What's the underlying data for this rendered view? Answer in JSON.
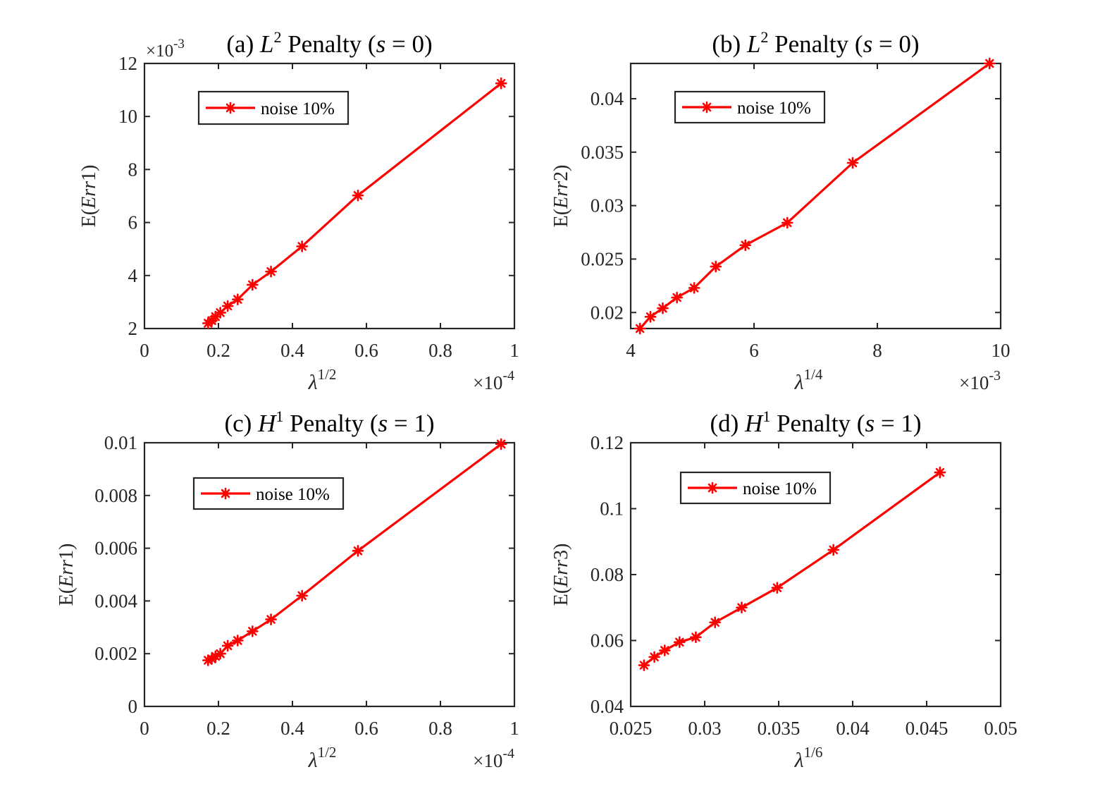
{
  "chart_data": [
    {
      "type": "line",
      "panel": "(a)",
      "title_prefix": "(a) ",
      "title_italic": "L",
      "title_sup": "2",
      "title_mid": " Penalty (",
      "title_var": "s",
      "title_end": " = 0)",
      "xlabel_base": "λ",
      "xlabel_sup": "1/2",
      "ylabel_prefix": "E(",
      "ylabel_italic": "Err",
      "ylabel_suffix": "1)",
      "xlim": [
        0,
        1
      ],
      "ylim": [
        2,
        12
      ],
      "xticks": [
        0,
        0.2,
        0.4,
        0.6,
        0.8,
        1
      ],
      "xtick_labels": [
        "0",
        "0.2",
        "0.4",
        "0.6",
        "0.8",
        "1"
      ],
      "yticks": [
        2,
        4,
        6,
        8,
        10,
        12
      ],
      "ytick_labels": [
        "2",
        "4",
        "6",
        "8",
        "10",
        "12"
      ],
      "x_multiplier_base": "×10",
      "x_multiplier_exp": "-4",
      "y_multiplier_base": "×10",
      "y_multiplier_exp": "-3",
      "legend": "noise 10%",
      "legend_pos": "top-left",
      "color": "#ff0000",
      "x": [
        0.172,
        0.182,
        0.192,
        0.205,
        0.225,
        0.252,
        0.292,
        0.342,
        0.426,
        0.577,
        0.964
      ],
      "y": [
        2.2,
        2.3,
        2.45,
        2.6,
        2.85,
        3.1,
        3.65,
        4.15,
        5.1,
        7.02,
        11.25
      ]
    },
    {
      "type": "line",
      "panel": "(b)",
      "title_prefix": "(b) ",
      "title_italic": "L",
      "title_sup": "2",
      "title_mid": " Penalty (",
      "title_var": "s",
      "title_end": " = 0)",
      "xlabel_base": "λ",
      "xlabel_sup": "1/4",
      "ylabel_prefix": "E(",
      "ylabel_italic": "Err",
      "ylabel_suffix": "2)",
      "xlim": [
        4,
        10
      ],
      "ylim": [
        0.0185,
        0.0433
      ],
      "xticks": [
        4,
        6,
        8,
        10
      ],
      "xtick_labels": [
        "4",
        "6",
        "8",
        "10"
      ],
      "yticks": [
        0.02,
        0.025,
        0.03,
        0.035,
        0.04
      ],
      "ytick_labels": [
        "0.02",
        "0.025",
        "0.03",
        "0.035",
        "0.04"
      ],
      "x_multiplier_base": "×10",
      "x_multiplier_exp": "-3",
      "legend": "noise 10%",
      "legend_pos": "top-left",
      "color": "#ff0000",
      "x": [
        4.15,
        4.32,
        4.52,
        4.75,
        5.03,
        5.38,
        5.86,
        6.54,
        7.6,
        9.82
      ],
      "y": [
        0.0185,
        0.0196,
        0.0204,
        0.0214,
        0.0223,
        0.0243,
        0.0263,
        0.0284,
        0.034,
        0.0433
      ]
    },
    {
      "type": "line",
      "panel": "(c)",
      "title_prefix": "(c) ",
      "title_italic": "H",
      "title_sup": "1",
      "title_mid": " Penalty (",
      "title_var": "s",
      "title_end": " = 1)",
      "xlabel_base": "λ",
      "xlabel_sup": "1/2",
      "ylabel_prefix": "E(",
      "ylabel_italic": "Err",
      "ylabel_suffix": "1)",
      "xlim": [
        0,
        1
      ],
      "ylim": [
        0,
        0.01
      ],
      "xticks": [
        0,
        0.2,
        0.4,
        0.6,
        0.8,
        1
      ],
      "xtick_labels": [
        "0",
        "0.2",
        "0.4",
        "0.6",
        "0.8",
        "1"
      ],
      "yticks": [
        0,
        0.002,
        0.004,
        0.006,
        0.008,
        0.01
      ],
      "ytick_labels": [
        "0",
        "0.002",
        "0.004",
        "0.006",
        "0.008",
        "0.01"
      ],
      "x_multiplier_base": "×10",
      "x_multiplier_exp": "-4",
      "legend": "noise 10%",
      "legend_pos": "top-left",
      "color": "#ff0000",
      "x": [
        0.172,
        0.182,
        0.192,
        0.205,
        0.225,
        0.252,
        0.292,
        0.342,
        0.426,
        0.577,
        0.964
      ],
      "y": [
        0.00175,
        0.0018,
        0.0019,
        0.002,
        0.0023,
        0.0025,
        0.00285,
        0.0033,
        0.0042,
        0.0059,
        0.00995
      ]
    },
    {
      "type": "line",
      "panel": "(d)",
      "title_prefix": "(d) ",
      "title_italic": "H",
      "title_sup": "1",
      "title_mid": " Penalty (",
      "title_var": "s",
      "title_end": " = 1)",
      "xlabel_base": "λ",
      "xlabel_sup": "1/6",
      "ylabel_prefix": "E(",
      "ylabel_italic": "Err",
      "ylabel_suffix": "3)",
      "xlim": [
        0.025,
        0.05
      ],
      "ylim": [
        0.04,
        0.12
      ],
      "xticks": [
        0.025,
        0.03,
        0.035,
        0.04,
        0.045,
        0.05
      ],
      "xtick_labels": [
        "0.025",
        "0.03",
        "0.035",
        "0.04",
        "0.045",
        "0.05"
      ],
      "yticks": [
        0.04,
        0.06,
        0.08,
        0.1,
        0.12
      ],
      "ytick_labels": [
        "0.04",
        "0.06",
        "0.08",
        "0.1",
        "0.12"
      ],
      "legend": "noise 10%",
      "legend_pos": "top-left",
      "color": "#ff0000",
      "x": [
        0.0259,
        0.0266,
        0.0273,
        0.0283,
        0.0294,
        0.0307,
        0.0325,
        0.0349,
        0.0387,
        0.0459
      ],
      "y": [
        0.0525,
        0.055,
        0.057,
        0.0595,
        0.061,
        0.0655,
        0.07,
        0.076,
        0.0875,
        0.111
      ]
    }
  ]
}
